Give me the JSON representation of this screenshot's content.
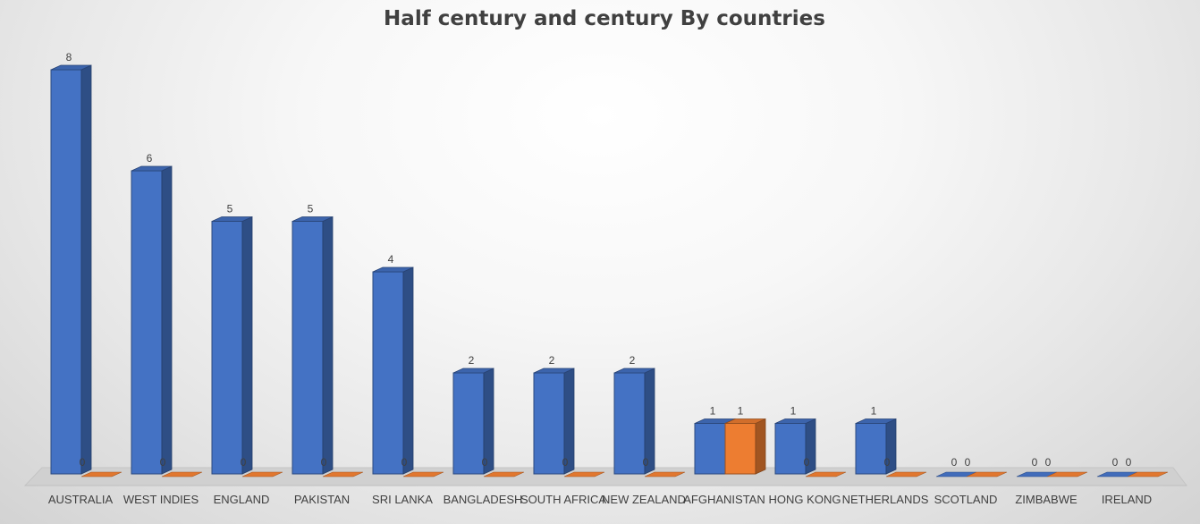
{
  "chart_data": {
    "type": "bar",
    "title": "Half century and century By countries",
    "categories": [
      "AUSTRALIA",
      "WEST INDIES",
      "ENGLAND",
      "PAKISTAN",
      "SRI LANKA",
      "BANGLADESH",
      "SOUTH AFRICA",
      "NEW ZEALAND",
      "AFGHANISTAN",
      "HONG KONG",
      "NETHERLANDS",
      "SCOTLAND",
      "ZIMBABWE",
      "IRELAND"
    ],
    "series": [
      {
        "values": [
          8,
          6,
          5,
          5,
          4,
          2,
          2,
          2,
          1,
          1,
          1,
          0,
          0,
          0
        ],
        "color": "#4472C4"
      },
      {
        "values": [
          0,
          0,
          0,
          0,
          0,
          0,
          0,
          0,
          1,
          0,
          0,
          0,
          0,
          0
        ],
        "color": "#ED7D31"
      }
    ],
    "ylim": [
      0,
      8
    ],
    "data_labels": true,
    "grid": false,
    "legend": "none",
    "style": "3d-column"
  }
}
